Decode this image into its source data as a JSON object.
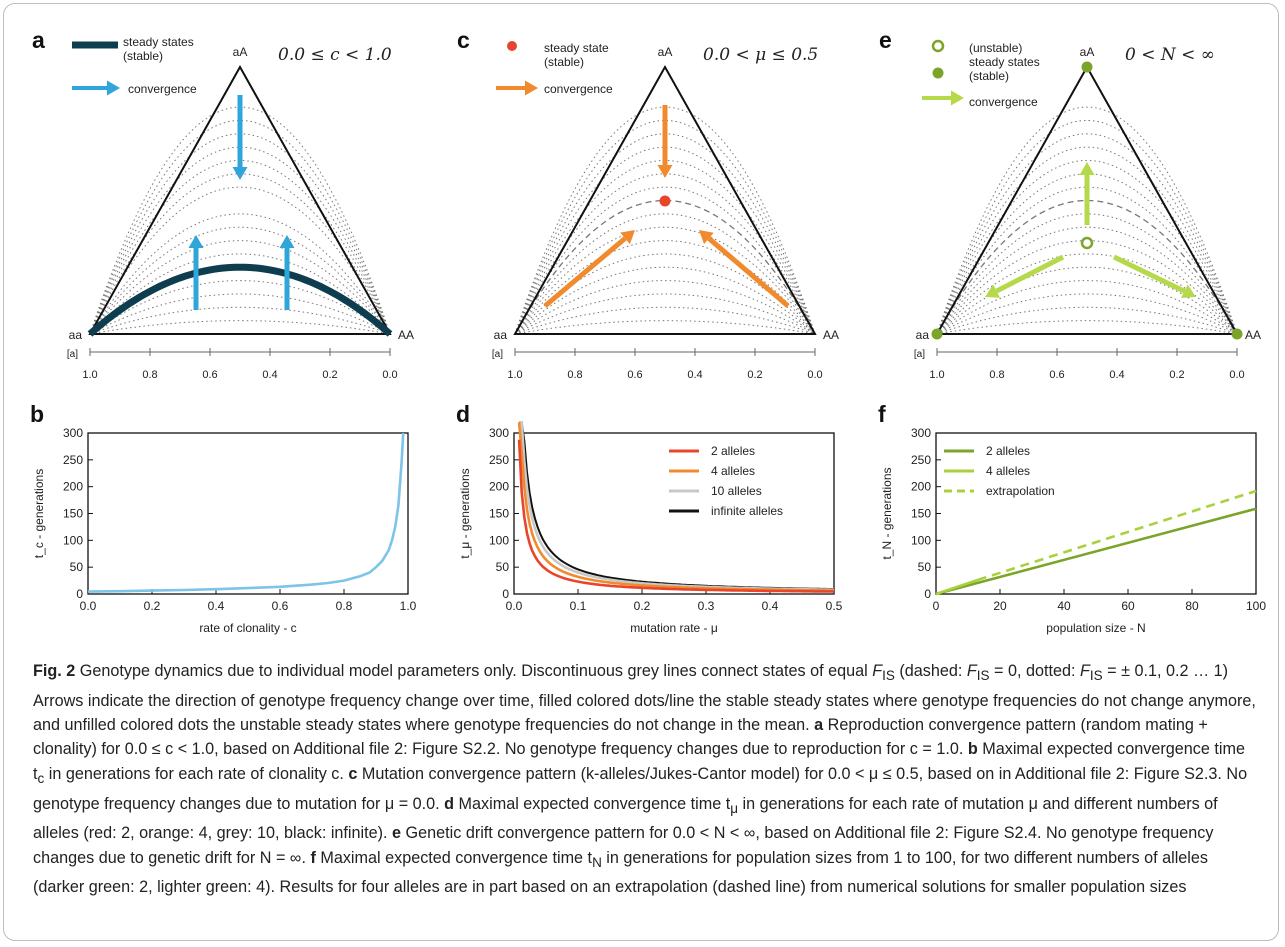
{
  "colors": {
    "clonality": "#2ea6d9",
    "clonality_curve": "#0d3d4e",
    "clonality_time": "#7cc4e8",
    "mutation_point": "#e8452c",
    "mutation_arrow": "#f08a2d",
    "allele2": "#e8452c",
    "allele4": "#f08a2d",
    "allele10": "#c8c8c8",
    "alleleInf": "#111111",
    "drift_dark": "#7ba428",
    "drift_light": "#a9d13c",
    "drift_arrow": "#b5d94a"
  },
  "panels": {
    "a": {
      "letter": "a",
      "legend": [
        "steady states\n(stable)",
        "convergence"
      ],
      "range": "0.0 ≤ c < 1.0"
    },
    "c": {
      "letter": "c",
      "legend": [
        "steady state\n(stable)",
        "convergence"
      ],
      "range": "0.0 < μ ≤ 0.5"
    },
    "e": {
      "letter": "e",
      "legend": [
        "(unstable)\nsteady states",
        "(stable)",
        "convergence"
      ],
      "range": "0 < N < ∞"
    },
    "corner_labels": {
      "top": "aA",
      "left": "aa",
      "right": "AA",
      "axis_unit": "[a]"
    },
    "triangle_ticks": [
      "1.0",
      "0.8",
      "0.6",
      "0.4",
      "0.2",
      "0.0"
    ],
    "b": {
      "letter": "b"
    },
    "d": {
      "letter": "d"
    },
    "f": {
      "letter": "f"
    }
  },
  "chart_data": [
    {
      "panel": "b",
      "type": "line",
      "xlabel": "rate of clonality - c",
      "ylabel": "t_c - generations",
      "xlim": [
        0.0,
        1.0
      ],
      "ylim": [
        0,
        300
      ],
      "xticks": [
        "0.0",
        "0.2",
        "0.4",
        "0.6",
        "0.8",
        "1.0"
      ],
      "yticks": [
        "0",
        "50",
        "100",
        "150",
        "200",
        "250",
        "300"
      ],
      "series": [
        {
          "x": [
            0.0,
            0.1,
            0.2,
            0.3,
            0.4,
            0.5,
            0.6,
            0.7,
            0.75,
            0.8,
            0.85,
            0.88,
            0.9,
            0.92,
            0.94,
            0.95,
            0.96,
            0.97,
            0.98,
            0.985
          ],
          "y": [
            4.5,
            5.3,
            6.3,
            7.5,
            9,
            11,
            13.5,
            17.5,
            20.5,
            25,
            33,
            40,
            50,
            62,
            82,
            100,
            125,
            165,
            245,
            300
          ]
        }
      ]
    },
    {
      "panel": "d",
      "type": "line",
      "xlabel": "mutation rate - μ",
      "ylabel": "t_μ - generations",
      "xlim": [
        0.0,
        0.5
      ],
      "ylim": [
        0,
        300
      ],
      "xticks": [
        "0.0",
        "0.1",
        "0.2",
        "0.3",
        "0.4",
        "0.5"
      ],
      "yticks": [
        "0",
        "50",
        "100",
        "150",
        "200",
        "250",
        "300"
      ],
      "series": [
        {
          "name": "2 alleles",
          "k": 2.3
        },
        {
          "name": "4 alleles",
          "k": 3.2
        },
        {
          "name": "10 alleles",
          "k": 4.0
        },
        {
          "name": "infinite alleles",
          "k": 4.6
        }
      ]
    },
    {
      "panel": "f",
      "type": "line",
      "xlabel": "population size - N",
      "ylabel": "t_N - generations",
      "xlim": [
        0,
        100
      ],
      "ylim": [
        0,
        300
      ],
      "xticks": [
        "0",
        "20",
        "40",
        "60",
        "80",
        "100"
      ],
      "yticks": [
        "0",
        "50",
        "100",
        "150",
        "200",
        "250",
        "300"
      ],
      "series": [
        {
          "name": "2 alleles",
          "x": [
            0,
            100
          ],
          "y": [
            0,
            159
          ]
        },
        {
          "name": "4 alleles",
          "x": [
            0,
            13
          ],
          "y": [
            0,
            26
          ]
        },
        {
          "name": "extrapolation",
          "x": [
            13,
            100
          ],
          "y": [
            26,
            192
          ]
        }
      ]
    }
  ],
  "caption": {
    "fig_label": "Fig. 2",
    "p1": " Genotype dynamics due to individual model parameters only. Discontinuous grey lines connect states of equal ",
    "fis": "F",
    "fis_sub": "IS",
    "p2": " (dashed: ",
    "p3": " = 0, dotted: ",
    "p4": " = ± 0.1, 0.2 … 1) Arrows indicate the direction of genotype frequency change over time, filled colored dots/line the stable steady states where genotype frequencies do not change anymore, and unfilled colored dots the unstable steady states where genotype frequencies do not change in the mean. ",
    "a_lbl": "a",
    "a_txt": " Reproduction convergence pattern (random mating + clonality) for 0.0 ≤ c < 1.0, based on Additional file 2: Figure S2.2. No genotype frequency changes due to reproduction for c = 1.0. ",
    "b_lbl": "b",
    "b_txt": " Maximal expected convergence time t",
    "b_sub": "c",
    "b_txt2": " in generations for each rate of clonality c. ",
    "c_lbl": "c",
    "c_txt": " Mutation convergence pattern (k-alleles/Jukes-Cantor model) for 0.0 < μ ≤ 0.5, based on in Additional file 2: Figure S2.3. No genotype frequency changes due to mutation for μ = 0.0. ",
    "d_lbl": "d",
    "d_txt": " Maximal expected convergence time t",
    "d_sub": "μ",
    "d_txt2": " in generations for each rate of mutation μ and different numbers of alleles (red: 2, orange: 4, grey: 10, black: infinite). ",
    "e_lbl": "e",
    "e_txt": " Genetic drift convergence pattern for 0.0 < N < ∞, based on Additional file 2: Figure S2.4. No genotype frequency changes due to genetic drift for N = ∞. ",
    "f_lbl": "f",
    "f_txt": " Maximal expected convergence time t",
    "f_sub": "N",
    "f_txt2": " in generations for population sizes from 1 to 100, for two different numbers of alleles (darker green: 2, lighter green: 4). Results for four alleles are in part based on an extrapolation (dashed line) from numerical solutions for smaller population sizes"
  }
}
